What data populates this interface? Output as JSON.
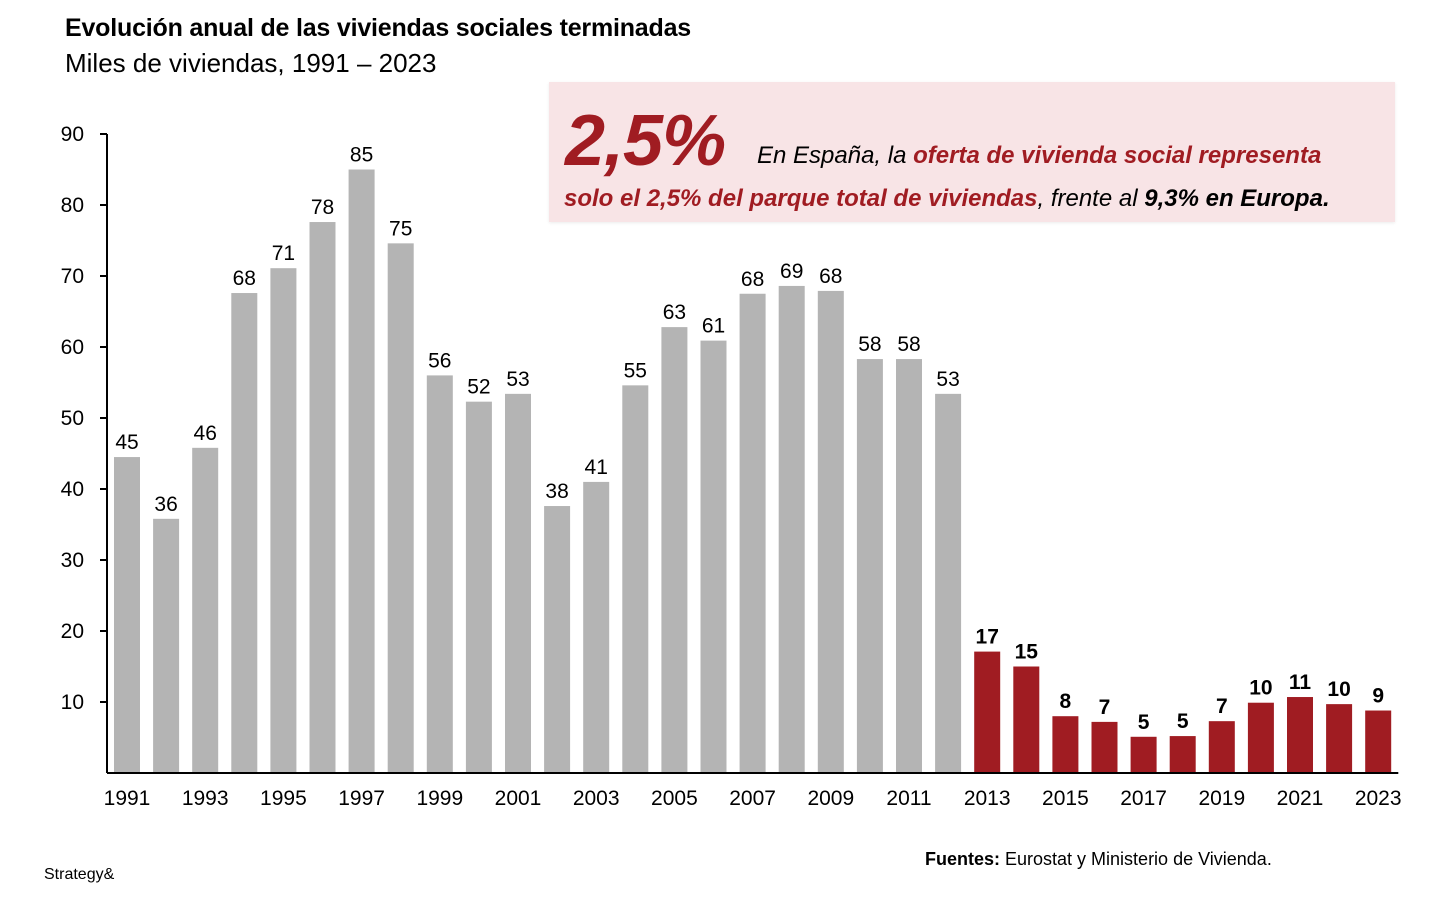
{
  "header": {
    "title": "Evolución anual de las viviendas sociales terminadas",
    "subtitle": "Miles de viviendas, 1991 – 2023"
  },
  "callout": {
    "big_number": "2,5%",
    "line1_plain": "En España, la ",
    "line1_red": "oferta de vivienda social representa",
    "line2_red": "solo el 2,5% del parque total de viviendas",
    "line2_plain": ", frente al ",
    "line2_bold": "9,3% en Europa."
  },
  "footer": {
    "brand": "Strategy&",
    "sources_label": "Fuentes:",
    "sources_text": " Eurostat y Ministerio de Vivienda."
  },
  "colors": {
    "gray_bar": "#b4b4b4",
    "red_bar": "#a01c22",
    "callout_bg": "#f8e4e6"
  },
  "chart_data": {
    "type": "bar",
    "title": "Evolución anual de las viviendas sociales terminadas",
    "subtitle": "Miles de viviendas, 1991 – 2023",
    "xlabel": "",
    "ylabel": "Miles de viviendas",
    "ylim": [
      0,
      90
    ],
    "yticks": [
      10,
      20,
      30,
      40,
      50,
      60,
      70,
      80,
      90
    ],
    "xtick_labels": [
      "1991",
      "1993",
      "1995",
      "1997",
      "1999",
      "2001",
      "2003",
      "2005",
      "2007",
      "2009",
      "2011",
      "2013",
      "2015",
      "2017",
      "2019",
      "2021",
      "2023"
    ],
    "grid": false,
    "legend": "none",
    "categories": [
      "1991",
      "1992",
      "1993",
      "1994",
      "1995",
      "1996",
      "1997",
      "1998",
      "1999",
      "2000",
      "2001",
      "2002",
      "2003",
      "2004",
      "2005",
      "2006",
      "2007",
      "2008",
      "2009",
      "2010",
      "2011",
      "2012",
      "2013",
      "2014",
      "2015",
      "2016",
      "2017",
      "2018",
      "2019",
      "2020",
      "2021",
      "2022",
      "2023"
    ],
    "values": [
      44.5,
      35.8,
      45.8,
      67.6,
      71.1,
      77.6,
      85.0,
      74.6,
      56.0,
      52.3,
      53.4,
      37.6,
      41.0,
      54.6,
      62.8,
      60.9,
      67.5,
      68.6,
      67.9,
      58.3,
      58.3,
      53.4,
      17.1,
      15.0,
      8.0,
      7.2,
      5.1,
      5.2,
      7.3,
      9.9,
      10.7,
      9.7,
      8.8
    ],
    "data_labels": [
      "45",
      "36",
      "46",
      "68",
      "71",
      "78",
      "85",
      "75",
      "56",
      "52",
      "53",
      "38",
      "41",
      "55",
      "63",
      "61",
      "68",
      "69",
      "68",
      "58",
      "58",
      "53",
      "17",
      "15",
      "8",
      "7",
      "5",
      "5",
      "7",
      "10",
      "11",
      "10",
      "9"
    ],
    "highlight_from": "2013"
  }
}
